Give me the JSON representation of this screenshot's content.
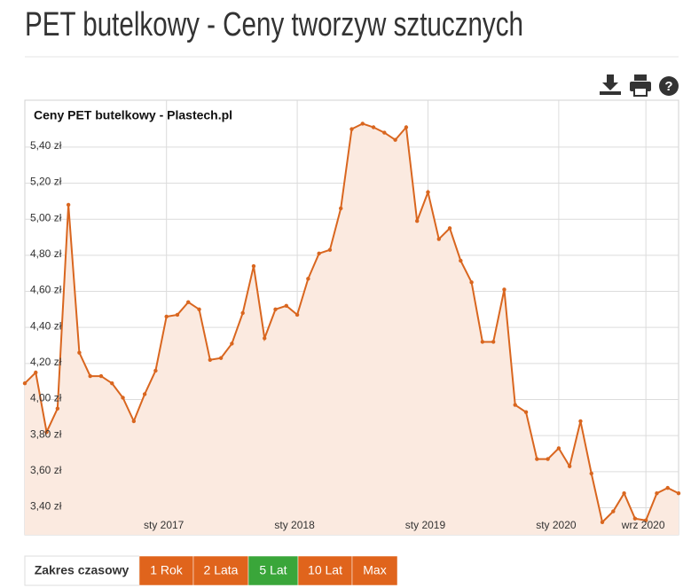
{
  "header": {
    "title": "PET butelkowy - Ceny tworzyw sztucznych"
  },
  "chart_data": {
    "type": "area",
    "title": "Ceny PET butelkowy - Plastech.pl",
    "categories": [
      null,
      null,
      null,
      null,
      null,
      null,
      null,
      null,
      null,
      null,
      null,
      null,
      null,
      "sty 2017",
      null,
      null,
      null,
      null,
      null,
      null,
      null,
      null,
      null,
      null,
      null,
      "sty 2018",
      null,
      null,
      null,
      null,
      null,
      null,
      null,
      null,
      null,
      null,
      null,
      "sty 2019",
      null,
      null,
      null,
      null,
      null,
      null,
      null,
      null,
      null,
      null,
      null,
      "sty 2020",
      null,
      null,
      null,
      null,
      null,
      null,
      null,
      "wrz 2020",
      null,
      null,
      null
    ],
    "values": [
      4.09,
      4.15,
      3.82,
      3.95,
      5.08,
      4.26,
      4.13,
      4.13,
      4.09,
      4.01,
      3.88,
      4.03,
      4.16,
      4.46,
      4.47,
      4.54,
      4.5,
      4.22,
      4.23,
      4.31,
      4.48,
      4.74,
      4.34,
      4.5,
      4.52,
      4.47,
      4.67,
      4.81,
      4.83,
      5.06,
      5.5,
      5.53,
      5.51,
      5.48,
      5.44,
      5.51,
      4.99,
      5.15,
      4.89,
      4.95,
      4.77,
      4.65,
      4.32,
      4.32,
      4.61,
      3.97,
      3.93,
      3.67,
      3.67,
      3.73,
      3.63,
      3.88,
      3.59,
      3.32,
      3.38,
      3.48,
      3.34,
      3.33,
      3.48,
      3.51,
      3.48
    ],
    "color": "#d9661f",
    "fill": "#fbeae0",
    "ylim": [
      3.25,
      5.66
    ],
    "yticks": [
      {
        "value": 3.4,
        "label": "3,40 zł"
      },
      {
        "value": 3.6,
        "label": "3,60 zł"
      },
      {
        "value": 3.8,
        "label": "3,80 zł"
      },
      {
        "value": 4.0,
        "label": "4,00 zł"
      },
      {
        "value": 4.2,
        "label": "4,20 zł"
      },
      {
        "value": 4.4,
        "label": "4,40 zł"
      },
      {
        "value": 4.6,
        "label": "4,60 zł"
      },
      {
        "value": 4.8,
        "label": "4,80 zł"
      },
      {
        "value": 5.0,
        "label": "5,00 zł"
      },
      {
        "value": 5.2,
        "label": "5,20 zł"
      },
      {
        "value": 5.4,
        "label": "5,40 zł"
      }
    ],
    "grid": true
  },
  "time_range": {
    "label": "Zakres czasowy",
    "buttons": [
      "1 Rok",
      "2 Lata",
      "5 Lat",
      "10 Lat",
      "Max"
    ]
  }
}
